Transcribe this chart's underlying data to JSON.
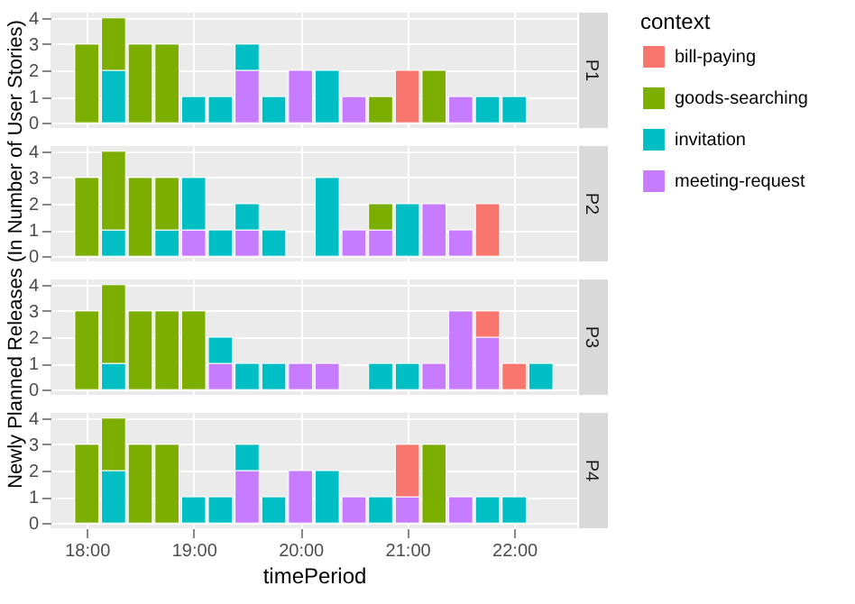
{
  "chart_data": [
    {
      "type": "bar",
      "title": "P1",
      "ylabel": "Newly Planned Releases (In Number of User Stories)",
      "legend_title": "context",
      "legend": "right",
      "stacked": true,
      "grid": true,
      "tick_labels": "y",
      "x": [
        18,
        18.25,
        18.5,
        18.75,
        19,
        19.25,
        19.5,
        19.75,
        20,
        20.25,
        20.5,
        20.75,
        21,
        21.25,
        21.5,
        21.75,
        22
      ],
      "xlim": [
        17.66,
        22.59
      ],
      "xticks": [
        18,
        19,
        20,
        21,
        22
      ],
      "ylim": [
        -0.2,
        4.2
      ],
      "yticks": [
        0,
        1,
        2,
        3,
        4
      ],
      "series": [
        {
          "name": "meeting-request",
          "color": "#c77cff",
          "values": [
            null,
            null,
            null,
            null,
            null,
            null,
            2,
            null,
            2,
            null,
            1,
            null,
            null,
            null,
            1,
            null,
            null
          ]
        },
        {
          "name": "invitation",
          "color": "#00bfc4",
          "values": [
            null,
            2,
            null,
            null,
            1,
            1,
            1,
            1,
            null,
            2,
            null,
            null,
            null,
            null,
            null,
            1,
            1
          ]
        },
        {
          "name": "goods-searching",
          "color": "#7cae00",
          "values": [
            3,
            2,
            3,
            3,
            null,
            null,
            null,
            null,
            null,
            null,
            null,
            1,
            null,
            2,
            null,
            null,
            null
          ]
        },
        {
          "name": "bill-paying",
          "color": "#f8766d",
          "values": [
            null,
            null,
            null,
            null,
            null,
            null,
            null,
            null,
            null,
            null,
            null,
            null,
            2,
            null,
            null,
            null,
            null
          ]
        }
      ]
    },
    {
      "type": "bar",
      "title": "P2",
      "stacked": true,
      "grid": true,
      "tick_labels": "y",
      "x": [
        18,
        18.25,
        18.5,
        18.75,
        19,
        19.25,
        19.5,
        19.75,
        20,
        20.25,
        20.5,
        20.75,
        21,
        21.25,
        21.5,
        21.75
      ],
      "xlim": [
        17.66,
        22.59
      ],
      "xticks": [
        18,
        19,
        20,
        21,
        22
      ],
      "ylim": [
        -0.2,
        4.2
      ],
      "yticks": [
        0,
        1,
        2,
        3,
        4
      ],
      "series": [
        {
          "name": "meeting-request",
          "color": "#c77cff",
          "values": [
            null,
            null,
            null,
            null,
            1,
            null,
            1,
            null,
            null,
            null,
            1,
            1,
            null,
            2,
            1,
            null
          ]
        },
        {
          "name": "invitation",
          "color": "#00bfc4",
          "values": [
            null,
            1,
            null,
            1,
            2,
            1,
            1,
            1,
            null,
            3,
            null,
            null,
            2,
            null,
            null,
            null
          ]
        },
        {
          "name": "goods-searching",
          "color": "#7cae00",
          "values": [
            3,
            3,
            3,
            2,
            null,
            null,
            null,
            null,
            null,
            null,
            null,
            1,
            null,
            null,
            null,
            null
          ]
        },
        {
          "name": "bill-paying",
          "color": "#f8766d",
          "values": [
            null,
            null,
            null,
            null,
            null,
            null,
            null,
            null,
            null,
            null,
            null,
            null,
            null,
            null,
            null,
            2
          ]
        }
      ]
    },
    {
      "type": "bar",
      "title": "P3",
      "stacked": true,
      "grid": true,
      "tick_labels": "y",
      "x": [
        18,
        18.25,
        18.5,
        18.75,
        19,
        19.25,
        19.5,
        19.75,
        20,
        20.25,
        20.5,
        20.75,
        21,
        21.25,
        21.5,
        21.75,
        22,
        22.25
      ],
      "xlim": [
        17.66,
        22.59
      ],
      "xticks": [
        18,
        19,
        20,
        21,
        22
      ],
      "ylim": [
        -0.2,
        4.2
      ],
      "yticks": [
        0,
        1,
        2,
        3,
        4
      ],
      "series": [
        {
          "name": "meeting-request",
          "color": "#c77cff",
          "values": [
            null,
            null,
            null,
            null,
            null,
            1,
            null,
            null,
            1,
            1,
            null,
            null,
            null,
            1,
            3,
            2,
            null,
            null
          ]
        },
        {
          "name": "invitation",
          "color": "#00bfc4",
          "values": [
            null,
            1,
            null,
            null,
            null,
            1,
            1,
            1,
            null,
            null,
            null,
            1,
            1,
            null,
            null,
            null,
            null,
            1
          ]
        },
        {
          "name": "goods-searching",
          "color": "#7cae00",
          "values": [
            3,
            3,
            3,
            3,
            3,
            null,
            null,
            null,
            null,
            null,
            null,
            null,
            null,
            null,
            null,
            null,
            null,
            null
          ]
        },
        {
          "name": "bill-paying",
          "color": "#f8766d",
          "values": [
            null,
            null,
            null,
            null,
            null,
            null,
            null,
            null,
            null,
            null,
            null,
            null,
            null,
            null,
            null,
            1,
            1,
            null
          ]
        }
      ]
    },
    {
      "type": "bar",
      "title": "P4",
      "xlabel": "timePeriod",
      "stacked": true,
      "grid": true,
      "x": [
        18,
        18.25,
        18.5,
        18.75,
        19,
        19.25,
        19.5,
        19.75,
        20,
        20.25,
        20.5,
        20.75,
        21,
        21.25,
        21.5,
        21.75,
        22
      ],
      "xlim": [
        17.66,
        22.59
      ],
      "xticks": [
        {
          "value": 18,
          "label": "18:00"
        },
        {
          "value": 19,
          "label": "19:00"
        },
        {
          "value": 20,
          "label": "20:00"
        },
        {
          "value": 21,
          "label": "21:00"
        },
        {
          "value": 22,
          "label": "22:00"
        }
      ],
      "ylim": [
        -0.2,
        4.2
      ],
      "yticks": [
        0,
        1,
        2,
        3,
        4
      ],
      "series": [
        {
          "name": "meeting-request",
          "color": "#c77cff",
          "values": [
            null,
            null,
            null,
            null,
            null,
            null,
            2,
            null,
            2,
            null,
            1,
            null,
            1,
            null,
            1,
            null,
            null
          ]
        },
        {
          "name": "invitation",
          "color": "#00bfc4",
          "values": [
            null,
            2,
            null,
            null,
            1,
            1,
            1,
            1,
            null,
            2,
            null,
            1,
            null,
            null,
            null,
            1,
            1
          ]
        },
        {
          "name": "goods-searching",
          "color": "#7cae00",
          "values": [
            3,
            2,
            3,
            3,
            null,
            null,
            null,
            null,
            null,
            null,
            null,
            null,
            null,
            3,
            null,
            null,
            null
          ]
        },
        {
          "name": "bill-paying",
          "color": "#f8766d",
          "values": [
            null,
            null,
            null,
            null,
            null,
            null,
            null,
            null,
            null,
            null,
            null,
            null,
            2,
            null,
            null,
            null,
            null
          ]
        }
      ]
    }
  ]
}
